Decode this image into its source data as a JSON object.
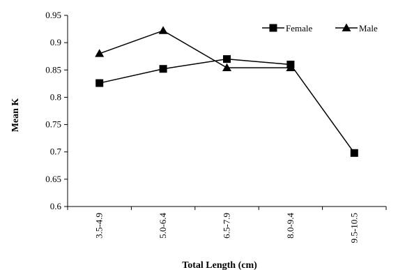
{
  "chart_data": {
    "type": "line",
    "title": "",
    "xlabel": "Total Length (cm)",
    "ylabel": "Mean K",
    "categories": [
      "3.5-4.9",
      "5.0-6.4",
      "6.5-7.9",
      "8.0-9.4",
      "9.5-10.5"
    ],
    "ylim": [
      0.6,
      0.95
    ],
    "yticks": [
      "0.6",
      "0.65",
      "0.7",
      "0.75",
      "0.8",
      "0.85",
      "0.9",
      "0.95"
    ],
    "grid": false,
    "legend_position": "top-right",
    "series": [
      {
        "name": "Female",
        "marker": "square",
        "color": "#000000",
        "values": [
          0.826,
          0.852,
          0.87,
          0.86,
          0.698
        ]
      },
      {
        "name": "Male",
        "marker": "triangle",
        "color": "#000000",
        "values": [
          0.88,
          0.922,
          0.854,
          0.854,
          null
        ]
      }
    ]
  }
}
